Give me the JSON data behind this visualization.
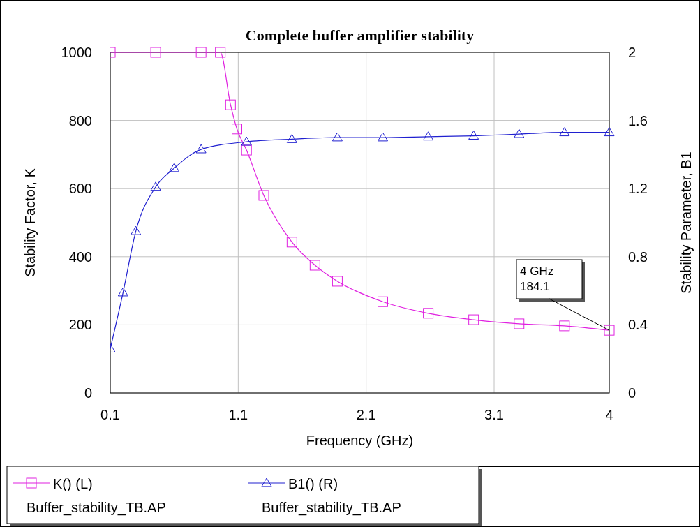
{
  "chart_data": {
    "type": "line",
    "title": "Complete buffer amplifier stability",
    "xlabel": "Frequency (GHz)",
    "ylabel": "Stability Factor, K",
    "y2label": "Stability Parameter, B1",
    "xlim": [
      0.1,
      4
    ],
    "xticks": [
      0.1,
      1.1,
      2.1,
      3.1,
      4
    ],
    "ylim": [
      0,
      1000
    ],
    "yticks": [
      0,
      200,
      400,
      600,
      800,
      1000
    ],
    "y2lim": [
      0,
      2
    ],
    "y2ticks": [
      0,
      0.4,
      0.8,
      1.2,
      1.6,
      2
    ],
    "grid": true,
    "legend": "bottom",
    "line_style": "solid",
    "annotations": [
      {
        "text": "4 GHz\n184.1",
        "x": 4,
        "y": 184.1
      }
    ],
    "series": [
      {
        "name": "K() (L)\nBuffer_stability_TB.AP",
        "color": "#e020e0",
        "marker": "square",
        "x": [
          0.1,
          0.455,
          0.81,
          0.96,
          1.04,
          1.09,
          1.165,
          1.3,
          1.52,
          1.7,
          1.875,
          2.23,
          2.585,
          2.94,
          3.295,
          3.65,
          4
        ],
        "values": [
          1000,
          1000,
          1000,
          1000,
          846,
          775,
          713,
          580,
          443,
          375,
          328,
          268,
          234,
          215,
          203,
          197,
          184.1
        ]
      },
      {
        "name": "B1() (R)\nBuffer_stability_TB.AP",
        "color": "#2020d0",
        "marker": "triangle",
        "axis": "y2",
        "x": [
          0.1,
          0.2,
          0.3,
          0.455,
          0.6,
          0.81,
          1.165,
          1.52,
          1.875,
          2.23,
          2.585,
          2.94,
          3.295,
          3.65,
          4
        ],
        "values": [
          0.26,
          0.59,
          0.95,
          1.21,
          1.32,
          1.43,
          1.475,
          1.49,
          1.5,
          1.5,
          1.505,
          1.51,
          1.52,
          1.53,
          1.53
        ]
      }
    ]
  }
}
